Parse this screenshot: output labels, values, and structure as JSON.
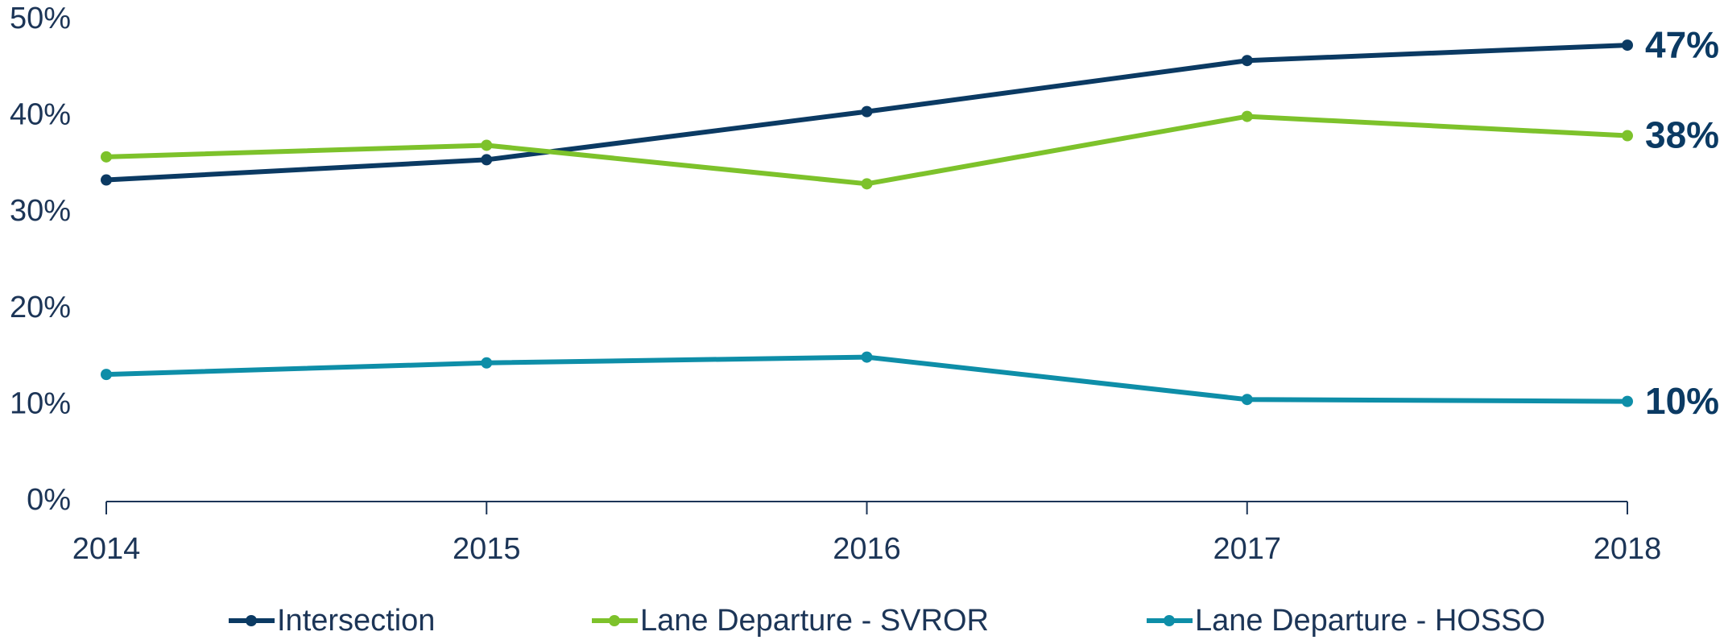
{
  "chart_data": {
    "type": "line",
    "categories": [
      "2014",
      "2015",
      "2016",
      "2017",
      "2018"
    ],
    "series": [
      {
        "name": "Intersection",
        "color": "#0b3a63",
        "values": [
          33.4,
          35.5,
          40.5,
          45.8,
          47.4
        ],
        "value_labels": [
          null,
          null,
          null,
          null,
          "47%"
        ]
      },
      {
        "name": "Lane Departure - SVROR",
        "color": "#7dc22b",
        "values": [
          35.8,
          37.0,
          33.0,
          40.0,
          38.0
        ],
        "value_labels": [
          null,
          null,
          null,
          null,
          "38%"
        ]
      },
      {
        "name": "Lane Departure - HOSSO",
        "color": "#0e8ea8",
        "values": [
          13.2,
          14.4,
          15.0,
          10.6,
          10.4
        ],
        "value_labels": [
          null,
          null,
          null,
          null,
          "10%"
        ]
      }
    ],
    "ylim": [
      0,
      50
    ],
    "yticks": [
      {
        "value": 0,
        "label": "0%"
      },
      {
        "value": 10,
        "label": "10%"
      },
      {
        "value": 20,
        "label": "20%"
      },
      {
        "value": 30,
        "label": "30%"
      },
      {
        "value": 40,
        "label": "40%"
      },
      {
        "value": 50,
        "label": "50%"
      }
    ],
    "grid": false,
    "legend": "bottom"
  }
}
